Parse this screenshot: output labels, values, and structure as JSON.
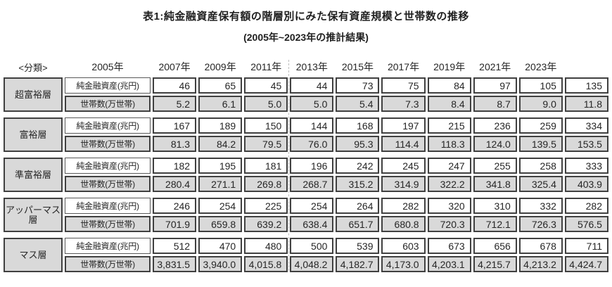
{
  "title": "表1:純金融資産保有額の階層別にみた保有資産規模と世帯数の推移",
  "subtitle": "(2005年~2023年の推計結果)",
  "classification_label": "<分類>",
  "row_labels": {
    "assets": "純金融資産(兆円)",
    "households": "世帯数(万世帯)"
  },
  "colors": {
    "cell_gray": "#d9d9d9",
    "border_dark": "#404040",
    "text": "#262626",
    "dashed_divider": "#bdbdbd"
  },
  "chart_data": {
    "type": "table",
    "title": "表1:純金融資産保有額の階層別にみた保有資産規模と世帯数の推移",
    "subtitle": "(2005年~2023年の推計結果)",
    "columns": [
      "2005年",
      "2007年",
      "2009年",
      "2011年",
      "2013年",
      "2015年",
      "2017年",
      "2019年",
      "2021年",
      "2023年"
    ],
    "row_metric_labels": [
      "純金融資産(兆円)",
      "世帯数(万世帯)"
    ],
    "tiers": [
      {
        "name": "超富裕層",
        "assets": [
          "46",
          "65",
          "45",
          "44",
          "73",
          "75",
          "84",
          "97",
          "105",
          "135"
        ],
        "households": [
          "5.2",
          "6.1",
          "5.0",
          "5.0",
          "5.4",
          "7.3",
          "8.4",
          "8.7",
          "9.0",
          "11.8"
        ]
      },
      {
        "name": "富裕層",
        "assets": [
          "167",
          "189",
          "150",
          "144",
          "168",
          "197",
          "215",
          "236",
          "259",
          "334"
        ],
        "households": [
          "81.3",
          "84.2",
          "79.5",
          "76.0",
          "95.3",
          "114.4",
          "118.3",
          "124.0",
          "139.5",
          "153.5"
        ]
      },
      {
        "name": "準富裕層",
        "assets": [
          "182",
          "195",
          "181",
          "196",
          "242",
          "245",
          "247",
          "255",
          "258",
          "333"
        ],
        "households": [
          "280.4",
          "271.1",
          "269.8",
          "268.7",
          "315.2",
          "314.9",
          "322.2",
          "341.8",
          "325.4",
          "403.9"
        ]
      },
      {
        "name": "アッパーマス層",
        "assets": [
          "246",
          "254",
          "225",
          "254",
          "264",
          "282",
          "320",
          "310",
          "332",
          "282"
        ],
        "households": [
          "701.9",
          "659.8",
          "639.2",
          "638.4",
          "651.7",
          "680.8",
          "720.3",
          "712.1",
          "726.3",
          "576.5"
        ]
      },
      {
        "name": "マス層",
        "assets": [
          "512",
          "470",
          "480",
          "500",
          "539",
          "603",
          "673",
          "656",
          "678",
          "711"
        ],
        "households": [
          "3,831.5",
          "3,940.0",
          "4,015.8",
          "4,048.2",
          "4,182.7",
          "4,173.0",
          "4,203.1",
          "4,215.7",
          "4,213.2",
          "4,424.7"
        ]
      }
    ]
  }
}
